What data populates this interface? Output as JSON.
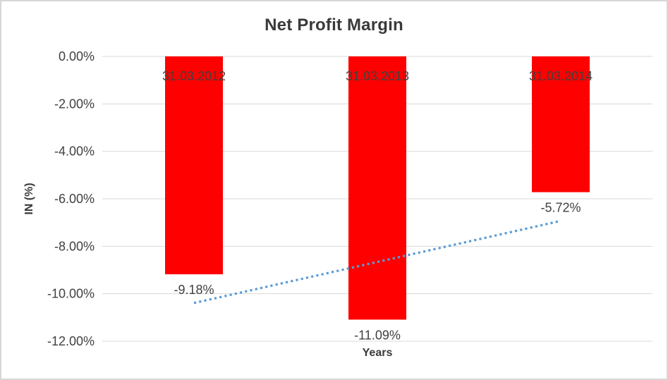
{
  "chart_data": {
    "type": "bar",
    "title": "Net Profit Margin",
    "xlabel": "Years",
    "ylabel": "IN (%)",
    "categories": [
      "31.03.2012",
      "31.03.2013",
      "31.03.2014"
    ],
    "values": [
      -9.18,
      -11.09,
      -5.72
    ],
    "data_labels": [
      "-9.18%",
      "-11.09%",
      "-5.72%"
    ],
    "y_ticks": [
      "0.00%",
      "-2.00%",
      "-4.00%",
      "-6.00%",
      "-8.00%",
      "-10.00%",
      "-12.00%"
    ],
    "ylim": [
      0,
      -12
    ],
    "grid": true,
    "legend": false,
    "trendline": {
      "type": "linear",
      "style": "dotted",
      "y_start": -10.39,
      "y_end": -6.93
    },
    "colors": {
      "bar": "#FF0000",
      "trendline": "#5B9BD5",
      "gridline": "#D9D9D9",
      "text": "#404040",
      "title_text": "#3A3A3A",
      "border": "#D6D6D6",
      "background": "#FFFFFF"
    }
  }
}
